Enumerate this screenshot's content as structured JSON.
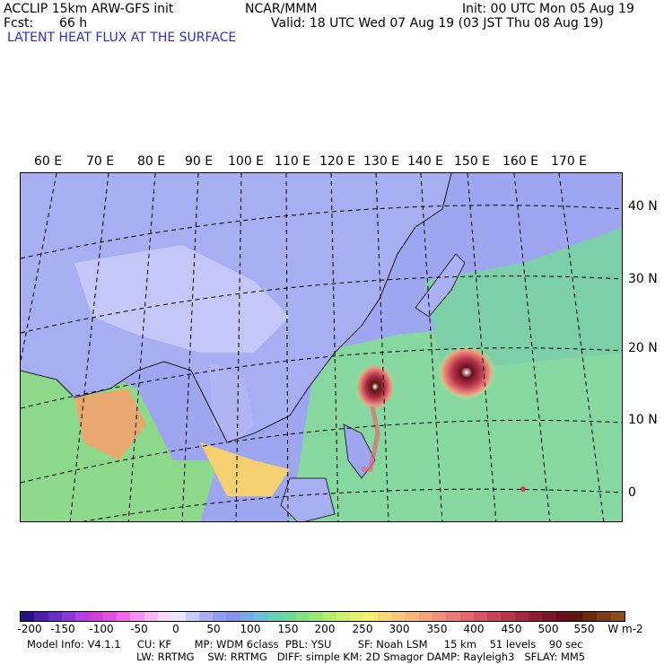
{
  "header": {
    "model": "ACCLIP 15km ARW-GFS init",
    "fcst_label": "Fcst:",
    "fcst_value": "66 h",
    "org": "NCAR/MMM",
    "init": "Init: 00 UTC Mon 05 Aug 19",
    "valid": "Valid: 18 UTC Wed 07 Aug 19 (03 JST Thu 08 Aug 19)",
    "field_title": "LATENT HEAT FLUX AT THE SURFACE"
  },
  "map": {
    "lon_labels": [
      "60 E",
      "70 E",
      "80 E",
      "90 E",
      "100 E",
      "110 E",
      "120 E",
      "130 E",
      "140 E",
      "150 E",
      "160 E",
      "170 E"
    ],
    "lat_labels": [
      "40 N",
      "30 N",
      "20 N",
      "10 N",
      "0"
    ]
  },
  "colorbar": {
    "labels": [
      "-200",
      "-150",
      "-100",
      "-50",
      "0",
      "50",
      "100",
      "150",
      "200",
      "250",
      "300",
      "350",
      "400",
      "450",
      "500",
      "550"
    ],
    "unit": "W m-2",
    "colors": [
      "#2a1080",
      "#4a20a8",
      "#6a2ec8",
      "#8c38d8",
      "#b040e0",
      "#d040d8",
      "#e050e0",
      "#f068e8",
      "#f490f0",
      "#f8b8f4",
      "#fcd8fa",
      "#e8e8ff",
      "#c8ccfa",
      "#aab0f4",
      "#949cf0",
      "#8892ec",
      "#7aa8e8",
      "#70c0d8",
      "#66d0b8",
      "#6cd89c",
      "#80e080",
      "#98e878",
      "#b4ec70",
      "#cef06c",
      "#e4f070",
      "#f4ec74",
      "#f8d878",
      "#f8c87c",
      "#f8b87c",
      "#f4a47c",
      "#f0907c",
      "#ec7c78",
      "#e46870",
      "#d85464",
      "#c84458",
      "#b8344c",
      "#a42840",
      "#901c34",
      "#7a1428",
      "#68101c",
      "#5a1810",
      "#6a2a10",
      "#7a3c14",
      "#8a4e1c"
    ]
  },
  "footer": {
    "line1": "Model Info: V4.1.1     CU: KF       MP: WDM 6class  PBL: YSU        SF: Noah LSM     15 km    51 levels    90 sec",
    "line2": "LW: RRTMG    SW: RRTMG   DIFF: simple KM: 2D Smagor DAMP: Rayleigh3   SFLAY: MM5"
  }
}
